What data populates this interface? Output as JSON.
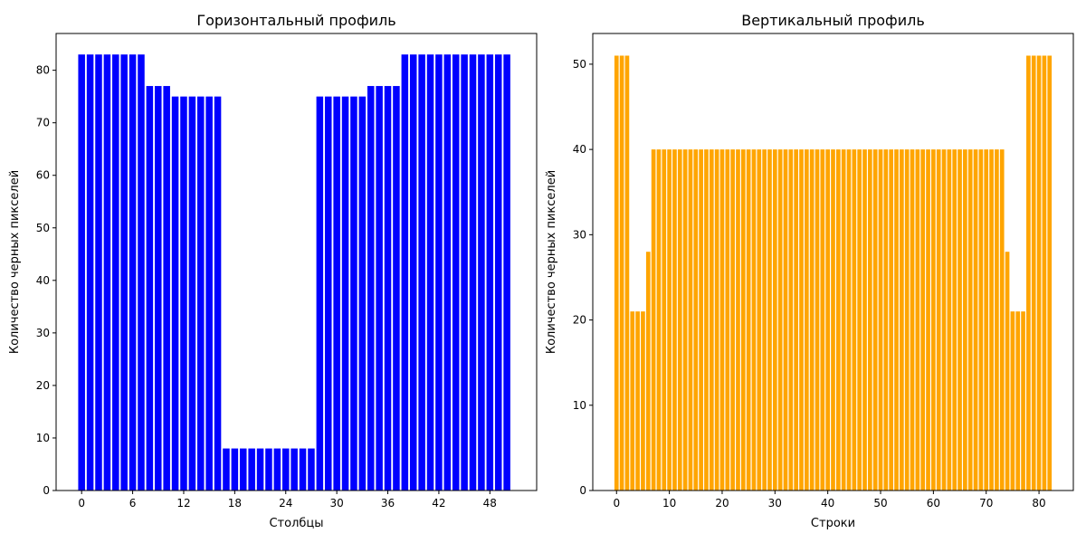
{
  "chart_data": [
    {
      "type": "bar",
      "title": "Горизонтальный профиль",
      "xlabel": "Столбцы",
      "ylabel": "Количество черных пикселей",
      "color": "#0000ff",
      "x": [
        0,
        1,
        2,
        3,
        4,
        5,
        6,
        7,
        8,
        9,
        10,
        11,
        12,
        13,
        14,
        15,
        16,
        17,
        18,
        19,
        20,
        21,
        22,
        23,
        24,
        25,
        26,
        27,
        28,
        29,
        30,
        31,
        32,
        33,
        34,
        35,
        36,
        37,
        38,
        39,
        40,
        41,
        42,
        43,
        44,
        45,
        46,
        47,
        48,
        49,
        50
      ],
      "values": [
        83,
        83,
        83,
        83,
        83,
        83,
        83,
        83,
        77,
        77,
        77,
        75,
        75,
        75,
        75,
        75,
        75,
        8,
        8,
        8,
        8,
        8,
        8,
        8,
        8,
        8,
        8,
        8,
        75,
        75,
        75,
        75,
        75,
        75,
        77,
        77,
        77,
        77,
        83,
        83,
        83,
        83,
        83,
        83,
        83,
        83,
        83,
        83,
        83,
        83,
        83
      ],
      "xlim": [
        -3,
        53.5
      ],
      "ylim": [
        0,
        87
      ],
      "xticks": [
        0,
        6,
        12,
        18,
        24,
        30,
        36,
        42,
        48
      ],
      "xtick_labels": [
        "0",
        "6",
        "12",
        "18",
        "24",
        "30",
        "36",
        "42",
        "48"
      ],
      "yticks": [
        0,
        10,
        20,
        30,
        40,
        50,
        60,
        70,
        80
      ],
      "ytick_labels": [
        "0",
        "10",
        "20",
        "30",
        "40",
        "50",
        "60",
        "70",
        "80"
      ],
      "grid": false
    },
    {
      "type": "bar",
      "title": "Вертикальный профиль",
      "xlabel": "Строки",
      "ylabel": "Количество черных пикселей",
      "color": "#ffa500",
      "x": [
        0,
        1,
        2,
        3,
        4,
        5,
        6,
        7,
        8,
        9,
        10,
        11,
        12,
        13,
        14,
        15,
        16,
        17,
        18,
        19,
        20,
        21,
        22,
        23,
        24,
        25,
        26,
        27,
        28,
        29,
        30,
        31,
        32,
        33,
        34,
        35,
        36,
        37,
        38,
        39,
        40,
        41,
        42,
        43,
        44,
        45,
        46,
        47,
        48,
        49,
        50,
        51,
        52,
        53,
        54,
        55,
        56,
        57,
        58,
        59,
        60,
        61,
        62,
        63,
        64,
        65,
        66,
        67,
        68,
        69,
        70,
        71,
        72,
        73,
        74,
        75,
        76,
        77,
        78,
        79,
        80,
        81,
        82
      ],
      "values": [
        51,
        51,
        51,
        21,
        21,
        21,
        28,
        40,
        40,
        40,
        40,
        40,
        40,
        40,
        40,
        40,
        40,
        40,
        40,
        40,
        40,
        40,
        40,
        40,
        40,
        40,
        40,
        40,
        40,
        40,
        40,
        40,
        40,
        40,
        40,
        40,
        40,
        40,
        40,
        40,
        40,
        40,
        40,
        40,
        40,
        40,
        40,
        40,
        40,
        40,
        40,
        40,
        40,
        40,
        40,
        40,
        40,
        40,
        40,
        40,
        40,
        40,
        40,
        40,
        40,
        40,
        40,
        40,
        40,
        40,
        40,
        40,
        40,
        40,
        28,
        21,
        21,
        21,
        51,
        51,
        51,
        51,
        51
      ],
      "xlim": [
        -4.5,
        86.5
      ],
      "ylim": [
        0,
        53.6
      ],
      "xticks": [
        0,
        10,
        20,
        30,
        40,
        50,
        60,
        70,
        80
      ],
      "xtick_labels": [
        "0",
        "10",
        "20",
        "30",
        "40",
        "50",
        "60",
        "70",
        "80"
      ],
      "yticks": [
        0,
        10,
        20,
        30,
        40,
        50
      ],
      "ytick_labels": [
        "0",
        "10",
        "20",
        "30",
        "40",
        "50"
      ],
      "grid": false
    }
  ]
}
